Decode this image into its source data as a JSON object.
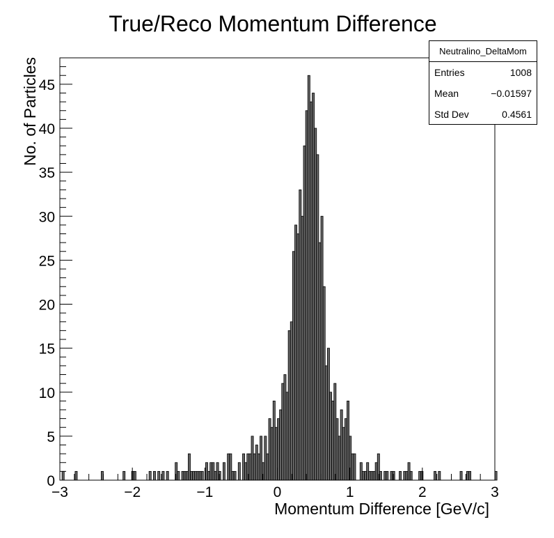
{
  "chart_data": {
    "type": "bar",
    "title": "True/Reco Momentum Difference",
    "xlabel": "Momentum Difference [GeV/c]",
    "ylabel": "No. of Particles",
    "xlim": [
      -3,
      3
    ],
    "ylim": [
      0,
      48
    ],
    "bin_width": 0.03,
    "x_ticks": [
      "−3",
      "−2",
      "−1",
      "0",
      "1",
      "2",
      "3"
    ],
    "y_ticks": [
      "0",
      "5",
      "10",
      "15",
      "20",
      "25",
      "30",
      "35",
      "40",
      "45"
    ],
    "stats": {
      "name": "Neutralino_DeltaMom",
      "entries_label": "Entries",
      "entries": "1008",
      "mean_label": "Mean",
      "mean": "−0.01597",
      "stddev_label": "Std Dev",
      "stddev": "0.4561"
    },
    "counts": [
      0,
      1,
      0,
      0,
      0,
      0,
      0,
      1,
      0,
      0,
      0,
      0,
      0,
      0,
      0,
      0,
      0,
      0,
      0,
      1,
      0,
      0,
      0,
      0,
      0,
      0,
      0,
      0,
      0,
      1,
      0,
      0,
      0,
      1,
      1,
      0,
      0,
      0,
      0,
      0,
      0,
      1,
      0,
      1,
      0,
      1,
      0,
      1,
      0,
      1,
      0,
      0,
      0,
      2,
      1,
      0,
      1,
      1,
      1,
      3,
      1,
      1,
      1,
      1,
      1,
      1,
      0,
      2,
      1,
      2,
      2,
      1,
      2,
      1,
      0,
      2,
      0,
      3,
      3,
      1,
      1,
      0,
      2,
      0,
      3,
      2,
      3,
      3,
      5,
      3,
      4,
      3,
      5,
      2,
      5,
      3,
      7,
      6,
      9,
      6,
      7,
      8,
      11,
      12,
      10,
      17,
      18,
      26,
      29,
      28,
      33,
      30,
      38,
      42,
      46,
      43,
      44,
      40,
      37,
      27,
      30,
      22,
      13,
      15,
      10,
      9,
      11,
      7,
      5,
      8,
      6,
      7,
      9,
      5,
      3,
      3,
      0,
      0,
      2,
      1,
      1,
      2,
      1,
      1,
      1,
      2,
      3,
      1,
      0,
      1,
      1,
      0,
      1,
      1,
      0,
      0,
      1,
      0,
      1,
      1,
      2,
      1,
      0,
      0,
      0,
      1,
      1,
      0,
      0,
      0,
      0,
      0,
      1,
      0,
      1,
      0,
      0,
      0,
      0,
      0,
      0,
      0,
      0,
      0,
      1,
      0,
      0,
      1,
      1,
      0,
      0,
      0,
      0,
      0,
      0,
      0,
      0,
      0,
      0,
      0,
      1
    ]
  }
}
